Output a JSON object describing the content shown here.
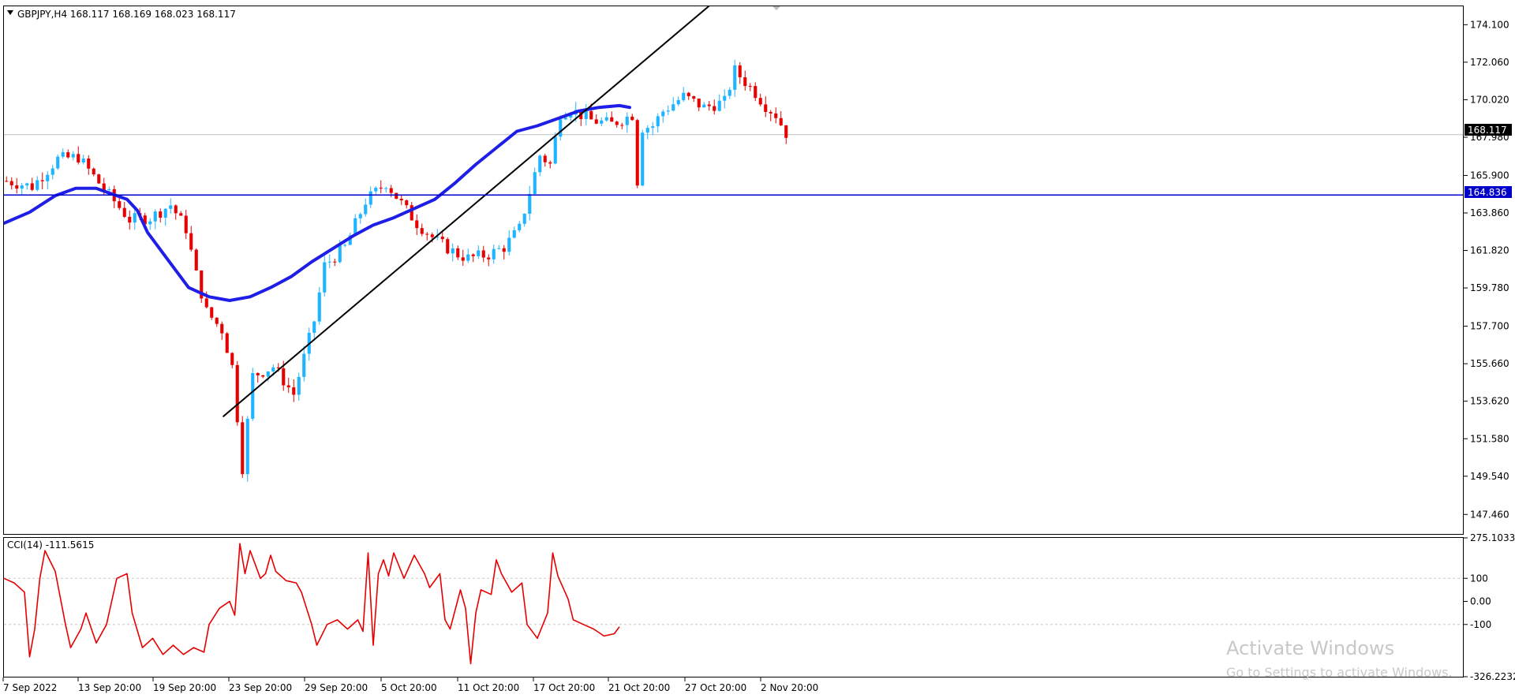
{
  "header": {
    "symbol_info": "GBPJPY,H4  168.117 168.169 168.023 168.117"
  },
  "indicator": {
    "label": "CCI(14) -111.5615"
  },
  "price_badges": {
    "current": "168.117",
    "hline": "164.836"
  },
  "watermark": {
    "line1": "Activate Windows",
    "line2": "Go to Settings to activate Windows."
  },
  "colors": {
    "bull": "#1eb4ff",
    "bear": "#e60000",
    "ma": "#1e1ee6",
    "hline": "#0000cc",
    "trend": "#000000",
    "cci": "#e60000",
    "grid": "#c8c8c8"
  },
  "chart_data": [
    {
      "type": "candlestick",
      "symbol": "GBPJPY",
      "timeframe": "H4",
      "ylim": [
        146.4,
        175.1
      ],
      "y_ticks": [
        "174.100",
        "172.060",
        "170.020",
        "167.980",
        "165.900",
        "163.860",
        "161.820",
        "159.780",
        "157.700",
        "155.660",
        "153.620",
        "151.580",
        "149.540",
        "147.460"
      ],
      "x_ticks": [
        "7 Sep 2022",
        "13 Sep 20:00",
        "19 Sep 20:00",
        "23 Sep 20:00",
        "29 Sep 20:00",
        "5 Oct 20:00",
        "11 Oct 20:00",
        "17 Oct 20:00",
        "21 Oct 20:00",
        "27 Oct 20:00",
        "2 Nov 20:00"
      ],
      "close_path": [
        [
          0,
          165.6
        ],
        [
          5,
          165.3
        ],
        [
          10,
          166.8
        ],
        [
          14,
          166.9
        ],
        [
          18,
          165.5
        ],
        [
          24,
          163.5
        ],
        [
          28,
          163.6
        ],
        [
          32,
          164.3
        ],
        [
          35,
          163.0
        ],
        [
          37,
          160.5
        ],
        [
          39,
          158.5
        ],
        [
          42,
          157.5
        ],
        [
          44,
          155.5
        ],
        [
          46,
          150.0
        ],
        [
          48,
          155.0
        ],
        [
          52,
          155.5
        ],
        [
          56,
          154.0
        ],
        [
          60,
          158.0
        ],
        [
          62,
          161.0
        ],
        [
          66,
          162.0
        ],
        [
          70,
          164.5
        ],
        [
          74,
          165.5
        ],
        [
          78,
          164.0
        ],
        [
          80,
          163.3
        ],
        [
          84,
          162.3
        ],
        [
          88,
          161.6
        ],
        [
          90,
          161.4
        ],
        [
          94,
          161.6
        ],
        [
          97,
          162.0
        ],
        [
          100,
          163.0
        ],
        [
          104,
          167.0
        ],
        [
          106,
          166.5
        ],
        [
          108,
          169.3
        ],
        [
          110,
          169.5
        ],
        [
          114,
          168.9
        ],
        [
          118,
          168.7
        ],
        [
          122,
          169.2
        ],
        [
          123,
          165.6
        ],
        [
          124,
          168.5
        ],
        [
          126,
          168.6
        ],
        [
          128,
          169.4
        ],
        [
          132,
          170.2
        ],
        [
          136,
          169.6
        ],
        [
          140,
          169.9
        ],
        [
          142,
          171.6
        ],
        [
          144,
          171.0
        ],
        [
          146,
          170.4
        ],
        [
          148,
          169.7
        ],
        [
          150,
          169.2
        ],
        [
          152,
          168.2
        ]
      ],
      "series": [
        {
          "name": "MA",
          "values": [
            [
              0,
              163.3
            ],
            [
              5,
              163.9
            ],
            [
              10,
              164.8
            ],
            [
              14,
              165.2
            ],
            [
              18,
              165.2
            ],
            [
              24,
              164.6
            ],
            [
              26,
              164.0
            ],
            [
              28,
              162.8
            ],
            [
              32,
              161.3
            ],
            [
              36,
              159.8
            ],
            [
              40,
              159.3
            ],
            [
              44,
              159.1
            ],
            [
              48,
              159.3
            ],
            [
              52,
              159.8
            ],
            [
              56,
              160.4
            ],
            [
              60,
              161.2
            ],
            [
              64,
              161.9
            ],
            [
              68,
              162.6
            ],
            [
              72,
              163.2
            ],
            [
              76,
              163.6
            ],
            [
              80,
              164.1
            ],
            [
              84,
              164.6
            ],
            [
              88,
              165.5
            ],
            [
              92,
              166.5
            ],
            [
              96,
              167.4
            ],
            [
              100,
              168.3
            ],
            [
              104,
              168.6
            ],
            [
              108,
              169.0
            ],
            [
              112,
              169.4
            ],
            [
              116,
              169.6
            ],
            [
              120,
              169.7
            ],
            [
              122,
              169.6
            ]
          ]
        },
        {
          "name": "Trendline",
          "values": [
            [
              42.8,
              152.8
            ],
            [
              137.4,
              175.1
            ]
          ]
        },
        {
          "name": "Horizontal line",
          "values": [
            [
              0,
              164.836
            ],
            [
              300,
              164.836
            ]
          ]
        }
      ]
    },
    {
      "type": "line",
      "title": "CCI(14) -111.5615",
      "ylim": [
        -326.2232,
        275.1033
      ],
      "y_ticks": [
        "275.1033",
        "100",
        "0.00",
        "-100",
        "-326.2232"
      ],
      "values": [
        [
          0,
          100
        ],
        [
          2,
          80
        ],
        [
          4,
          40
        ],
        [
          5,
          -240
        ],
        [
          6,
          -120
        ],
        [
          7,
          100
        ],
        [
          8,
          220
        ],
        [
          10,
          130
        ],
        [
          12,
          -100
        ],
        [
          13,
          -200
        ],
        [
          15,
          -120
        ],
        [
          16,
          -50
        ],
        [
          18,
          -180
        ],
        [
          20,
          -100
        ],
        [
          22,
          100
        ],
        [
          24,
          120
        ],
        [
          25,
          -50
        ],
        [
          27,
          -200
        ],
        [
          29,
          -160
        ],
        [
          31,
          -230
        ],
        [
          33,
          -190
        ],
        [
          35,
          -230
        ],
        [
          37,
          -200
        ],
        [
          39,
          -220
        ],
        [
          40,
          -100
        ],
        [
          42,
          -30
        ],
        [
          44,
          0
        ],
        [
          45,
          -60
        ],
        [
          46,
          250
        ],
        [
          47,
          120
        ],
        [
          48,
          220
        ],
        [
          50,
          100
        ],
        [
          51,
          120
        ],
        [
          52,
          200
        ],
        [
          53,
          130
        ],
        [
          55,
          90
        ],
        [
          57,
          80
        ],
        [
          58,
          40
        ],
        [
          60,
          -100
        ],
        [
          61,
          -190
        ],
        [
          63,
          -100
        ],
        [
          65,
          -80
        ],
        [
          67,
          -120
        ],
        [
          69,
          -80
        ],
        [
          70,
          -130
        ],
        [
          71,
          210
        ],
        [
          72,
          -190
        ],
        [
          73,
          120
        ],
        [
          74,
          180
        ],
        [
          75,
          110
        ],
        [
          76,
          210
        ],
        [
          78,
          100
        ],
        [
          80,
          200
        ],
        [
          82,
          120
        ],
        [
          83,
          60
        ],
        [
          85,
          120
        ],
        [
          86,
          -80
        ],
        [
          87,
          -120
        ],
        [
          89,
          50
        ],
        [
          90,
          -30
        ],
        [
          91,
          -270
        ],
        [
          92,
          -50
        ],
        [
          93,
          50
        ],
        [
          95,
          30
        ],
        [
          96,
          180
        ],
        [
          97,
          120
        ],
        [
          99,
          40
        ],
        [
          101,
          80
        ],
        [
          102,
          -100
        ],
        [
          104,
          -160
        ],
        [
          106,
          -50
        ],
        [
          107,
          210
        ],
        [
          108,
          110
        ],
        [
          110,
          10
        ],
        [
          111,
          -80
        ],
        [
          113,
          -100
        ],
        [
          115,
          -120
        ],
        [
          117,
          -150
        ],
        [
          119,
          -140
        ],
        [
          120,
          -110
        ]
      ]
    }
  ]
}
